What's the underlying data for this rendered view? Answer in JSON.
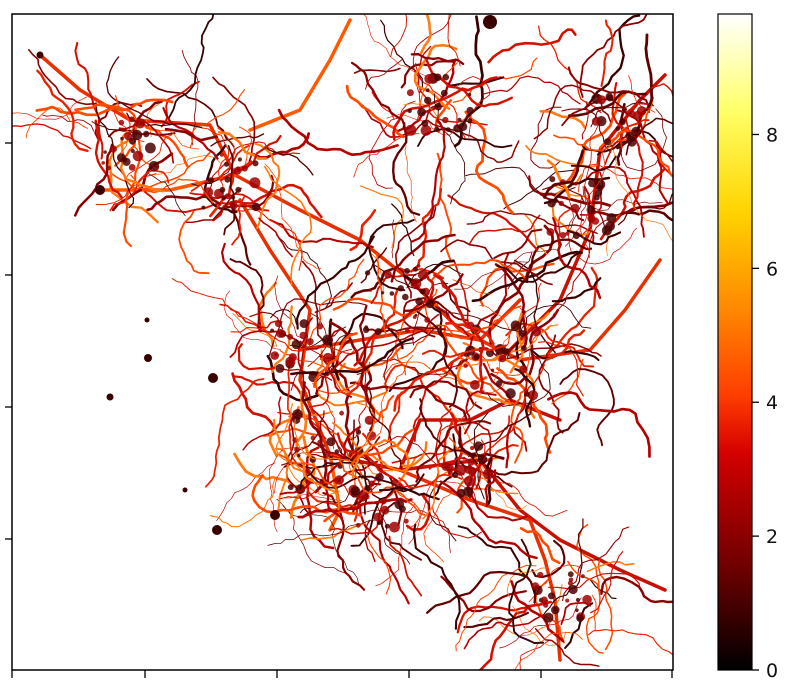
{
  "figure": {
    "colormap": "hot",
    "colorbar": {
      "ticks": [
        "0",
        "2",
        "4",
        "6",
        "8"
      ],
      "tick_values": [
        0,
        2,
        4,
        6,
        8
      ],
      "range": [
        0,
        9.8
      ]
    },
    "colors": {
      "background": "#ffffff",
      "frame": "#000000",
      "cmap_stops": [
        "#000000",
        "#6a0000",
        "#d40000",
        "#ff3e00",
        "#ff8800",
        "#ffd400",
        "#ffff66",
        "#ffffff"
      ]
    },
    "legend_position": "right"
  }
}
